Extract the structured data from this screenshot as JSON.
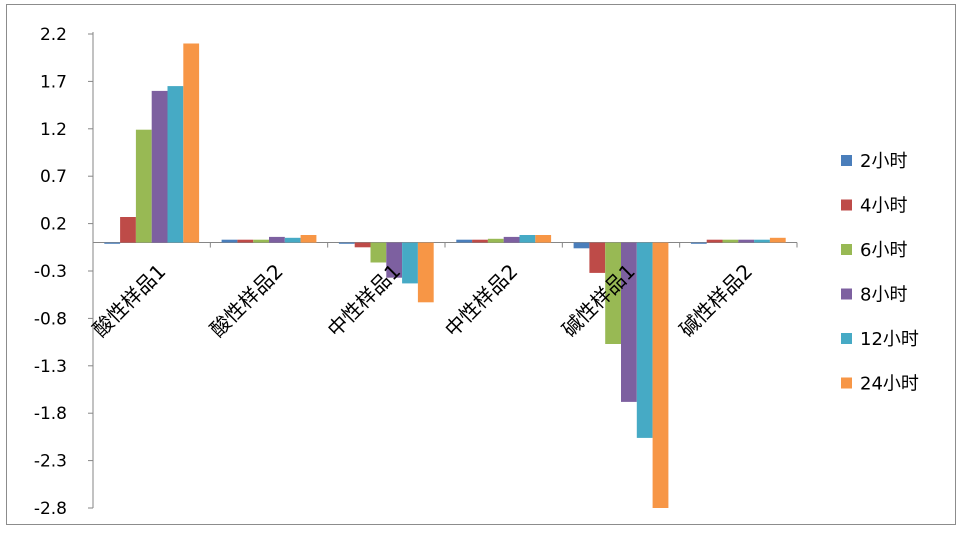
{
  "chart_data": {
    "type": "bar",
    "categories": [
      "酸性样品1",
      "酸性样品2",
      "中性样品1",
      "中性样品2",
      "碱性样品1",
      "碱性样品2"
    ],
    "series": [
      {
        "name": "2小时",
        "color": "#4a7ebb",
        "values": [
          0.0,
          0.03,
          -0.01,
          0.03,
          -0.06,
          -0.01
        ]
      },
      {
        "name": "4小时",
        "color": "#be4b48",
        "values": [
          0.27,
          0.03,
          -0.05,
          0.03,
          -0.32,
          0.03
        ]
      },
      {
        "name": "6小时",
        "color": "#98b954",
        "values": [
          1.19,
          0.03,
          -0.21,
          0.04,
          -1.07,
          0.03
        ]
      },
      {
        "name": "8小时",
        "color": "#7d60a0",
        "values": [
          1.6,
          0.06,
          -0.37,
          0.06,
          -1.68,
          0.03
        ]
      },
      {
        "name": "12小时",
        "color": "#46aac5",
        "values": [
          1.65,
          0.05,
          -0.43,
          0.08,
          -2.06,
          0.03
        ]
      },
      {
        "name": "24小时",
        "color": "#f79646",
        "values": [
          2.1,
          0.08,
          -0.63,
          0.08,
          -2.8,
          0.05
        ]
      }
    ],
    "ylim": [
      -2.8,
      2.2
    ],
    "yticks": [
      "2.2",
      "1.7",
      "1.2",
      "0.7",
      "0.2",
      "-0.3",
      "-0.8",
      "-1.3",
      "-1.8",
      "-2.3",
      "-2.8"
    ],
    "legend": "right",
    "grid": false
  }
}
